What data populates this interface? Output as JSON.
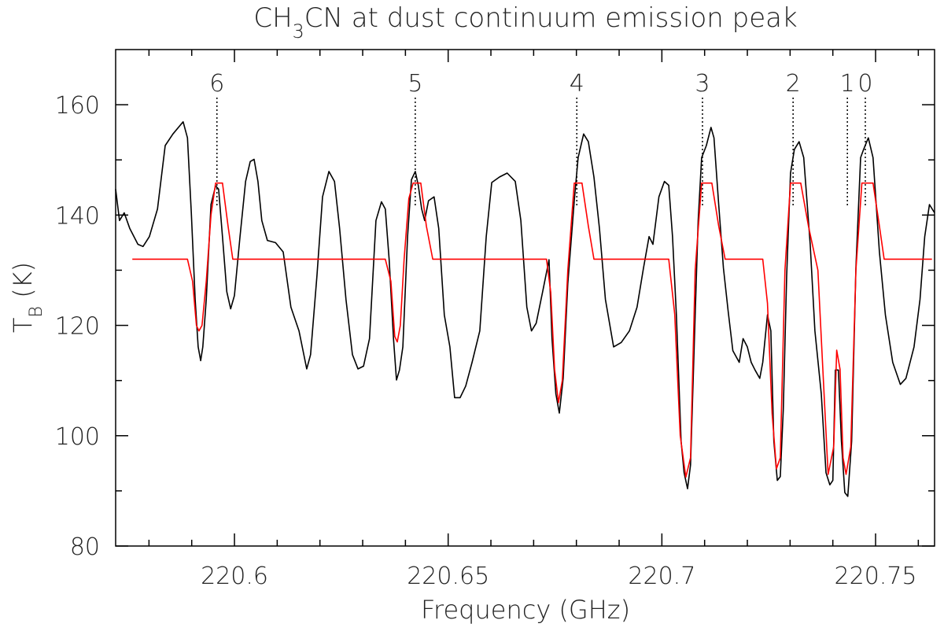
{
  "chart_data": {
    "type": "line",
    "title": [
      {
        "text": "CH"
      },
      {
        "text": "3",
        "sub": true
      },
      {
        "text": "CN at dust continuum emission peak"
      }
    ],
    "xlabel": [
      {
        "text": "Frequency (GHz)"
      }
    ],
    "ylabel": [
      {
        "text": "T"
      },
      {
        "text": "B",
        "sub": true
      },
      {
        "text": " (K)"
      }
    ],
    "xlim": [
      220.5722,
      220.7638
    ],
    "ylim": [
      80,
      170
    ],
    "xticks": [
      220.6,
      220.65,
      220.7,
      220.75
    ],
    "xminorticks": [
      220.58,
      220.59,
      220.61,
      220.62,
      220.63,
      220.64,
      220.66,
      220.67,
      220.68,
      220.69,
      220.71,
      220.72,
      220.73,
      220.74,
      220.76
    ],
    "yticks": [
      80,
      100,
      120,
      140,
      160
    ],
    "yminorticks": [
      90,
      110,
      130,
      150
    ],
    "annotations": [
      {
        "label": "6",
        "x": 220.5959
      },
      {
        "label": "5",
        "x": 220.6423
      },
      {
        "label": "4",
        "x": 220.6801
      },
      {
        "label": "3",
        "x": 220.7095
      },
      {
        "label": "2",
        "x": 220.7307
      },
      {
        "label": "1",
        "x": 220.7434
      },
      {
        "label": "0",
        "x": 220.7476
      }
    ],
    "series": [
      {
        "color": "#000000",
        "x": [
          220.5722,
          220.5731,
          220.5742,
          220.5755,
          220.5774,
          220.5786,
          220.5801,
          220.582,
          220.5838,
          220.5856,
          220.5871,
          220.588,
          220.589,
          220.5899,
          220.5908,
          220.5915,
          220.5921,
          220.5926,
          220.5934,
          220.5945,
          220.5956,
          220.5963,
          220.5972,
          220.5982,
          220.5991,
          220.6,
          220.6013,
          220.6026,
          220.6037,
          220.6046,
          220.6055,
          220.6064,
          220.6077,
          220.6096,
          220.6114,
          220.6132,
          220.6151,
          220.6169,
          220.6178,
          220.6193,
          220.6206,
          220.6221,
          220.6234,
          220.6246,
          220.6261,
          220.6276,
          220.6289,
          220.6302,
          220.6316,
          220.6331,
          220.6344,
          220.6353,
          220.6362,
          220.6372,
          220.6379,
          220.6386,
          220.6394,
          220.6405,
          220.6414,
          220.6423,
          220.643,
          220.6438,
          220.6445,
          220.6454,
          220.6467,
          220.6478,
          220.6491,
          220.6504,
          220.6515,
          220.6528,
          220.6541,
          220.6556,
          220.6574,
          220.6589,
          220.6602,
          220.662,
          220.6638,
          220.6657,
          220.667,
          220.6684,
          220.6695,
          220.6706,
          220.6721,
          220.6736,
          220.6743,
          220.6752,
          220.676,
          220.6769,
          220.678,
          220.6795,
          220.6804,
          220.6817,
          220.6828,
          220.6841,
          220.6854,
          220.6868,
          220.6887,
          220.6905,
          220.6924,
          220.6942,
          220.6957,
          220.697,
          220.6979,
          220.6993,
          220.7006,
          220.7016,
          220.7025,
          220.7034,
          220.7045,
          220.7052,
          220.706,
          220.7067,
          220.7078,
          220.7085,
          220.7093,
          220.7104,
          220.7115,
          220.7122,
          220.7133,
          220.7144,
          220.7155,
          220.7166,
          220.7181,
          220.719,
          220.72,
          220.7209,
          220.7218,
          220.7229,
          220.7236,
          220.7247,
          220.7255,
          220.7262,
          220.727,
          220.7277,
          220.7284,
          220.7292,
          220.7301,
          220.731,
          220.7321,
          220.7332,
          220.7347,
          220.7358,
          220.7373,
          220.7384,
          220.7393,
          220.74,
          220.7406,
          220.7413,
          220.742,
          220.7428,
          220.7435,
          220.7444,
          220.7454,
          220.7465,
          220.7472,
          220.7483,
          220.7494,
          220.7509,
          220.7523,
          220.754,
          220.7558,
          220.7571,
          220.759,
          220.7604,
          220.7615,
          220.7626,
          220.7638
        ],
        "values": [
          144.7,
          139.0,
          140.4,
          137.6,
          134.7,
          134.3,
          136.1,
          141.1,
          152.6,
          154.7,
          156.1,
          156.9,
          154.0,
          140.4,
          124.7,
          116.1,
          113.6,
          116.1,
          124.7,
          141.9,
          145.3,
          144.7,
          136.1,
          126.1,
          123.0,
          125.4,
          136.1,
          146.1,
          149.7,
          150.1,
          146.1,
          139.0,
          135.4,
          135.0,
          133.3,
          123.3,
          119.0,
          112.1,
          114.7,
          129.0,
          143.3,
          147.9,
          146.1,
          137.6,
          124.7,
          114.7,
          112.1,
          112.6,
          117.6,
          139.0,
          142.4,
          141.1,
          131.9,
          117.6,
          110.1,
          111.9,
          116.1,
          136.1,
          146.4,
          147.9,
          145.4,
          141.1,
          139.0,
          142.6,
          143.3,
          137.6,
          121.9,
          116.1,
          106.9,
          106.9,
          109.0,
          113.3,
          119.0,
          136.1,
          145.9,
          146.9,
          147.6,
          146.1,
          139.0,
          123.3,
          119.0,
          120.4,
          126.1,
          131.9,
          117.6,
          107.6,
          104.1,
          110.4,
          127.6,
          142.6,
          150.4,
          154.7,
          153.3,
          146.9,
          137.6,
          124.7,
          116.1,
          116.9,
          119.0,
          123.3,
          130.4,
          136.1,
          134.7,
          143.3,
          146.1,
          145.4,
          136.1,
          121.9,
          99.0,
          93.3,
          90.4,
          94.7,
          121.9,
          139.0,
          150.4,
          152.6,
          155.9,
          154.0,
          141.9,
          130.4,
          122.6,
          115.4,
          113.3,
          117.6,
          116.1,
          113.3,
          111.9,
          110.4,
          113.3,
          121.9,
          119.0,
          99.0,
          91.9,
          92.6,
          104.7,
          129.0,
          147.6,
          151.9,
          153.3,
          150.4,
          134.7,
          119.0,
          107.6,
          93.3,
          91.1,
          91.9,
          111.9,
          111.9,
          99.0,
          89.7,
          89.0,
          99.0,
          130.4,
          150.4,
          151.9,
          154.0,
          150.4,
          133.3,
          121.9,
          113.3,
          109.3,
          110.4,
          116.1,
          124.7,
          136.1,
          141.9,
          140.4
        ]
      },
      {
        "color": "#ff0000",
        "x": [
          220.5761,
          220.589,
          220.5902,
          220.5911,
          220.5917,
          220.5924,
          220.5934,
          220.5945,
          220.5956,
          220.5972,
          220.5985,
          220.5996,
          220.6353,
          220.6366,
          220.6375,
          220.6381,
          220.6388,
          220.6397,
          220.6408,
          220.6418,
          220.6436,
          220.6449,
          220.6464,
          220.673,
          220.674,
          220.6749,
          220.6758,
          220.6767,
          220.678,
          220.6795,
          220.6813,
          220.6828,
          220.6841,
          220.7016,
          220.703,
          220.7043,
          220.7056,
          220.7067,
          220.7078,
          220.7093,
          220.7117,
          220.7133,
          220.7148,
          220.7236,
          220.7247,
          220.7258,
          220.7268,
          220.7277,
          220.7288,
          220.7301,
          220.7325,
          220.7343,
          220.7365,
          220.7378,
          220.7389,
          220.7402,
          220.7409,
          220.7417,
          220.7424,
          220.7431,
          220.7442,
          220.7454,
          220.7468,
          220.7494,
          220.7509,
          220.752,
          220.7632
        ],
        "values": [
          132,
          132,
          128,
          120,
          119,
          120,
          128,
          140,
          145.8,
          145.8,
          138,
          132,
          132,
          128,
          118,
          117,
          120,
          132,
          143,
          145.8,
          145.8,
          138,
          132,
          132,
          126,
          112,
          106,
          110,
          130,
          145.8,
          145.8,
          138,
          132,
          132,
          122,
          100,
          92.5,
          96,
          130,
          145.8,
          145.8,
          138,
          132,
          132,
          124,
          104,
          94,
          96,
          130,
          145.8,
          145.8,
          138,
          130,
          110,
          93,
          98,
          115.5,
          112,
          96,
          93,
          98,
          130,
          145.8,
          145.8,
          138,
          132,
          132
        ]
      }
    ]
  }
}
